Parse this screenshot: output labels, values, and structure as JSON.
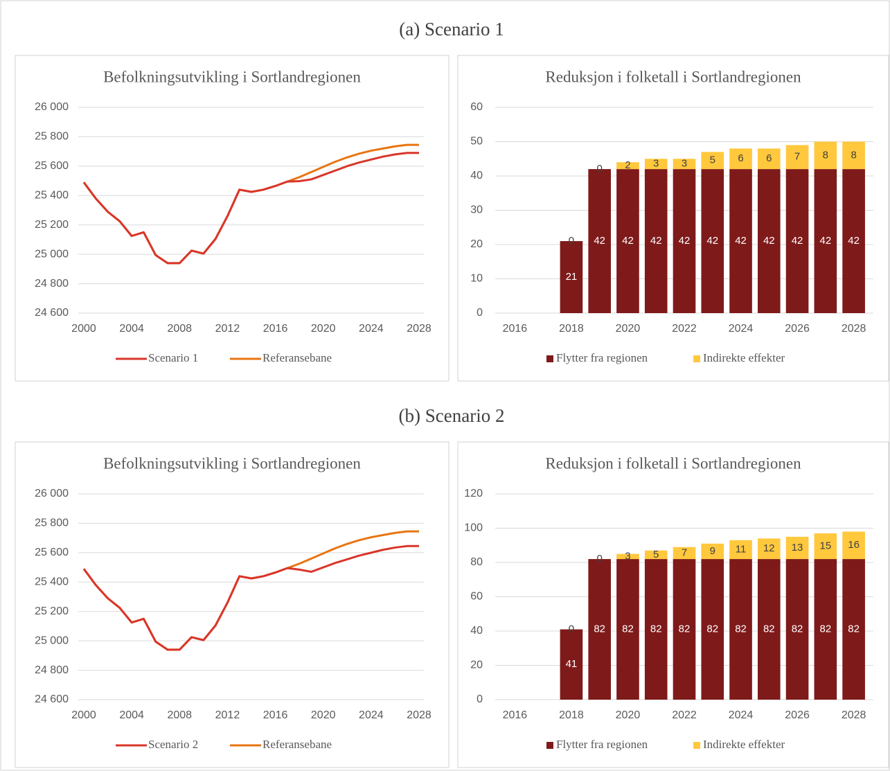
{
  "headings": [
    "(a) Scenario 1",
    "(b) Scenario 2"
  ],
  "chart_data": [
    {
      "type": "line",
      "title": "Befolkningsutvikling i Sortlandregionen",
      "x": [
        2000,
        2001,
        2002,
        2003,
        2004,
        2005,
        2006,
        2007,
        2008,
        2009,
        2010,
        2011,
        2012,
        2013,
        2014,
        2015,
        2016,
        2017,
        2018,
        2019,
        2020,
        2021,
        2022,
        2023,
        2024,
        2025,
        2026,
        2027,
        2028
      ],
      "xlim": [
        2000,
        2028
      ],
      "xticks": [
        2000,
        2004,
        2008,
        2012,
        2016,
        2020,
        2024,
        2028
      ],
      "ylim": [
        24600,
        26000
      ],
      "yticks": [
        {
          "value": 24600,
          "label": "24 600"
        },
        {
          "value": 24800,
          "label": "24 800"
        },
        {
          "value": 25000,
          "label": "25 000"
        },
        {
          "value": 25200,
          "label": "25 200"
        },
        {
          "value": 25400,
          "label": "25 400"
        },
        {
          "value": 25600,
          "label": "25 600"
        },
        {
          "value": 25800,
          "label": "25 800"
        },
        {
          "value": 26000,
          "label": "26 000"
        }
      ],
      "grid": true,
      "legend": "bottom",
      "series": [
        {
          "name": "Scenario 1",
          "color": "#d9352a",
          "values": [
            25490,
            25380,
            25290,
            25225,
            25125,
            25150,
            24995,
            24940,
            24940,
            25025,
            25005,
            25105,
            25260,
            25440,
            25425,
            25440,
            25465,
            25495,
            25498,
            25510,
            25540,
            25570,
            25600,
            25625,
            25645,
            25665,
            25680,
            25690,
            25690
          ]
        },
        {
          "name": "Referansebane",
          "color": "#e87511",
          "values": [
            25490,
            25380,
            25290,
            25225,
            25125,
            25150,
            24995,
            24940,
            24940,
            25025,
            25005,
            25105,
            25260,
            25440,
            25425,
            25440,
            25465,
            25495,
            25525,
            25560,
            25595,
            25630,
            25660,
            25685,
            25705,
            25720,
            25735,
            25745,
            25745
          ]
        }
      ]
    },
    {
      "type": "stacked_bar",
      "title": "Reduksjon i folketall i Sortlandregionen",
      "categories": [
        "2016",
        null,
        "2018",
        null,
        "2020",
        null,
        "2022",
        null,
        "2024",
        null,
        "2026",
        null,
        "2028"
      ],
      "ylim": [
        0,
        60
      ],
      "yticks": [
        0,
        10,
        20,
        30,
        40,
        50,
        60
      ],
      "grid": true,
      "legend": "bottom",
      "series": [
        {
          "name": "Flytter fra regionen",
          "color": "#7f1a1a",
          "values": [
            null,
            null,
            21,
            42,
            42,
            42,
            42,
            42,
            42,
            42,
            42,
            42,
            42
          ]
        },
        {
          "name": "Indirekte effekter",
          "color": "#ffc83d",
          "values": [
            null,
            null,
            0,
            0,
            2,
            3,
            3,
            5,
            6,
            6,
            7,
            8,
            8
          ]
        }
      ]
    },
    {
      "type": "line",
      "title": "Befolkningsutvikling i Sortlandregionen",
      "x": [
        2000,
        2001,
        2002,
        2003,
        2004,
        2005,
        2006,
        2007,
        2008,
        2009,
        2010,
        2011,
        2012,
        2013,
        2014,
        2015,
        2016,
        2017,
        2018,
        2019,
        2020,
        2021,
        2022,
        2023,
        2024,
        2025,
        2026,
        2027,
        2028
      ],
      "xlim": [
        2000,
        2028
      ],
      "xticks": [
        2000,
        2004,
        2008,
        2012,
        2016,
        2020,
        2024,
        2028
      ],
      "ylim": [
        24600,
        26000
      ],
      "yticks": [
        {
          "value": 24600,
          "label": "24 600"
        },
        {
          "value": 24800,
          "label": "24 800"
        },
        {
          "value": 25000,
          "label": "25 000"
        },
        {
          "value": 25200,
          "label": "25 200"
        },
        {
          "value": 25400,
          "label": "25 400"
        },
        {
          "value": 25600,
          "label": "25 600"
        },
        {
          "value": 25800,
          "label": "25 800"
        },
        {
          "value": 26000,
          "label": "26 000"
        }
      ],
      "grid": true,
      "legend": "bottom",
      "series": [
        {
          "name": "Scenario 2",
          "color": "#d9352a",
          "values": [
            25490,
            25380,
            25290,
            25225,
            25125,
            25150,
            24995,
            24940,
            24940,
            25025,
            25005,
            25105,
            25260,
            25440,
            25425,
            25440,
            25465,
            25495,
            25485,
            25470,
            25500,
            25530,
            25555,
            25580,
            25600,
            25620,
            25635,
            25645,
            25645
          ]
        },
        {
          "name": "Referansebane",
          "color": "#e87511",
          "values": [
            25490,
            25380,
            25290,
            25225,
            25125,
            25150,
            24995,
            24940,
            24940,
            25025,
            25005,
            25105,
            25260,
            25440,
            25425,
            25440,
            25465,
            25495,
            25525,
            25560,
            25595,
            25630,
            25660,
            25685,
            25705,
            25720,
            25735,
            25745,
            25745
          ]
        }
      ]
    },
    {
      "type": "stacked_bar",
      "title": "Reduksjon i folketall i Sortlandregionen",
      "categories": [
        "2016",
        null,
        "2018",
        null,
        "2020",
        null,
        "2022",
        null,
        "2024",
        null,
        "2026",
        null,
        "2028"
      ],
      "ylim": [
        0,
        120
      ],
      "yticks": [
        0,
        20,
        40,
        60,
        80,
        100,
        120
      ],
      "grid": true,
      "legend": "bottom",
      "series": [
        {
          "name": "Flytter fra regionen",
          "color": "#7f1a1a",
          "values": [
            null,
            null,
            41,
            82,
            82,
            82,
            82,
            82,
            82,
            82,
            82,
            82,
            82
          ]
        },
        {
          "name": "Indirekte effekter",
          "color": "#ffc83d",
          "values": [
            null,
            null,
            0,
            0,
            3,
            5,
            7,
            9,
            11,
            12,
            13,
            15,
            16
          ]
        }
      ]
    }
  ]
}
